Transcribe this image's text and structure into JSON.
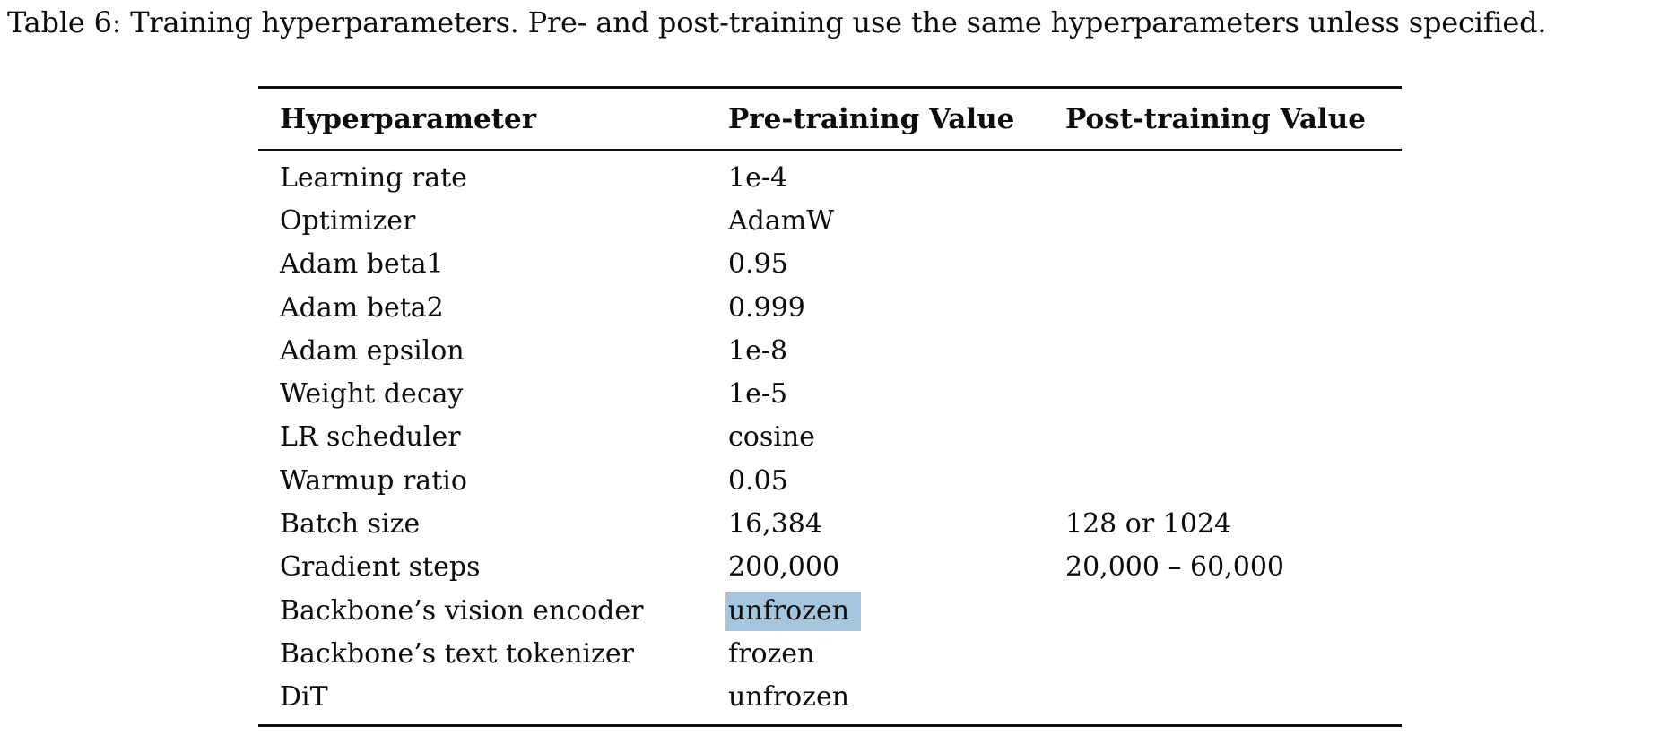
{
  "caption": "Table 6: Training hyperparameters. Pre- and post-training use the same hyperparameters unless specified.",
  "table": {
    "columns": [
      "Hyperparameter",
      "Pre-training Value",
      "Post-training Value"
    ],
    "rows": [
      {
        "name": "Learning rate",
        "pre": "1e-4",
        "post": ""
      },
      {
        "name": "Optimizer",
        "pre": "AdamW",
        "post": ""
      },
      {
        "name": "Adam beta1",
        "pre": "0.95",
        "post": ""
      },
      {
        "name": "Adam beta2",
        "pre": "0.999",
        "post": ""
      },
      {
        "name": "Adam epsilon",
        "pre": "1e-8",
        "post": ""
      },
      {
        "name": "Weight decay",
        "pre": "1e-5",
        "post": ""
      },
      {
        "name": "LR scheduler",
        "pre": "cosine",
        "post": ""
      },
      {
        "name": "Warmup ratio",
        "pre": "0.05",
        "post": ""
      },
      {
        "name": "Batch size",
        "pre": "16,384",
        "post": "128 or 1024"
      },
      {
        "name": "Gradient steps",
        "pre": "200,000",
        "post": "20,000 – 60,000"
      },
      {
        "name": "Backbone’s vision encoder",
        "pre": "unfrozen",
        "post": "",
        "pre_highlighted": true
      },
      {
        "name": "Backbone’s text tokenizer",
        "pre": "frozen",
        "post": ""
      },
      {
        "name": "DiT",
        "pre": "unfrozen",
        "post": ""
      }
    ],
    "highlight_color": "#a6c6de"
  }
}
